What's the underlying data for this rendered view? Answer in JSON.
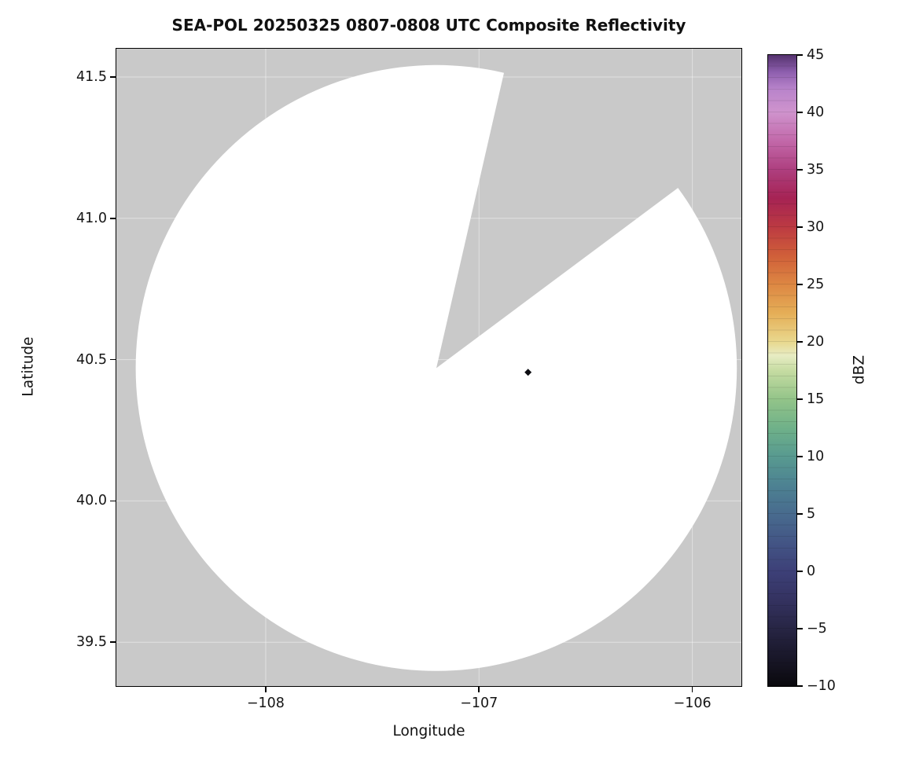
{
  "chart_data": {
    "type": "radar_ppi_composite",
    "title": "SEA-POL 20250325 0807-0808 UTC Composite Reflectivity",
    "xlabel": "Longitude",
    "ylabel": "Latitude",
    "xlim": [
      -108.7,
      -105.77
    ],
    "ylim": [
      39.345,
      41.6
    ],
    "grid": "faint white gridlines visible over no-data background",
    "background_color": "#c9c9c9",
    "xticks": [
      {
        "value": -108,
        "label": "−108"
      },
      {
        "value": -107,
        "label": "−107"
      },
      {
        "value": -106,
        "label": "−106"
      }
    ],
    "yticks": [
      {
        "value": 41.5,
        "label": "41.5"
      },
      {
        "value": 41.0,
        "label": "41.0"
      },
      {
        "value": 40.5,
        "label": "40.5"
      },
      {
        "value": 40.0,
        "label": "40.0"
      },
      {
        "value": 39.5,
        "label": "39.5"
      }
    ],
    "coverage": {
      "description": "white circular radar coverage area (no echoes) on gray no-data background, with a gray missing-data wedge cut from the center toward the upper right",
      "center_lon": -107.2,
      "center_lat": 40.47,
      "radius_deg_lat": 1.072,
      "fill": "#ffffff",
      "missing_sector": {
        "start_azimuth_deg": 13.0,
        "end_azimuth_deg": 53.5
      }
    },
    "echoes": [
      {
        "lon": -106.77,
        "lat": 40.455,
        "approx_value_dbz": -10,
        "marker": "diamond",
        "color": "#0d0d12"
      }
    ],
    "colorbar": {
      "label": "dBZ",
      "vmin": -10,
      "vmax": 45,
      "ticks": [
        {
          "value": 45,
          "label": "45"
        },
        {
          "value": 40,
          "label": "40"
        },
        {
          "value": 35,
          "label": "35"
        },
        {
          "value": 30,
          "label": "30"
        },
        {
          "value": 25,
          "label": "25"
        },
        {
          "value": 20,
          "label": "20"
        },
        {
          "value": 15,
          "label": "15"
        },
        {
          "value": 10,
          "label": "10"
        },
        {
          "value": 5,
          "label": "5"
        },
        {
          "value": 0,
          "label": "0"
        },
        {
          "value": -5,
          "label": "−5"
        },
        {
          "value": -10,
          "label": "−10"
        }
      ],
      "stops": [
        {
          "value": -10.0,
          "color": "#0a090d"
        },
        {
          "value": -7.5,
          "color": "#191729"
        },
        {
          "value": -5.0,
          "color": "#272544"
        },
        {
          "value": -2.5,
          "color": "#343260"
        },
        {
          "value": 0.0,
          "color": "#3d4078"
        },
        {
          "value": 2.5,
          "color": "#435585"
        },
        {
          "value": 5.0,
          "color": "#486b8e"
        },
        {
          "value": 7.5,
          "color": "#4d8292"
        },
        {
          "value": 10.0,
          "color": "#589a90"
        },
        {
          "value": 12.5,
          "color": "#6fb189"
        },
        {
          "value": 15.0,
          "color": "#93c489"
        },
        {
          "value": 17.5,
          "color": "#c6dca2"
        },
        {
          "value": 18.8,
          "color": "#e7ecc3"
        },
        {
          "value": 20.0,
          "color": "#e9d88e"
        },
        {
          "value": 22.5,
          "color": "#e5ae57"
        },
        {
          "value": 25.0,
          "color": "#dd8743"
        },
        {
          "value": 27.5,
          "color": "#d05f39"
        },
        {
          "value": 30.0,
          "color": "#bc3a42"
        },
        {
          "value": 32.5,
          "color": "#a62354"
        },
        {
          "value": 35.0,
          "color": "#ae3f7f"
        },
        {
          "value": 37.5,
          "color": "#c268a9"
        },
        {
          "value": 40.0,
          "color": "#cf93cd"
        },
        {
          "value": 42.0,
          "color": "#b984cb"
        },
        {
          "value": 43.5,
          "color": "#8e5fae"
        },
        {
          "value": 45.0,
          "color": "#55336f"
        }
      ]
    }
  }
}
